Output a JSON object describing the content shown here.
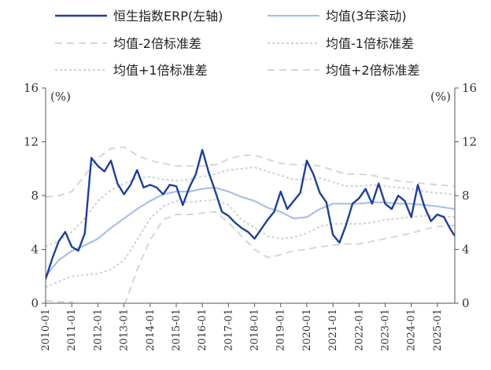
{
  "chart_data": {
    "type": "line",
    "y_left_label": "(%)",
    "y_right_label": "(%)",
    "ylim": [
      0,
      16
    ],
    "y_ticks": [
      "0",
      "4",
      "8",
      "12",
      "16"
    ],
    "x_ticks": [
      "2010-01",
      "2011-01",
      "2012-01",
      "2013-01",
      "2014-01",
      "2015-01",
      "2016-01",
      "2017-01",
      "2018-01",
      "2019-01",
      "2020-01",
      "2021-01",
      "2022-01",
      "2023-01",
      "2024-01",
      "2025-01"
    ],
    "x_range": [
      "2010-01",
      "2025-09"
    ],
    "colors": {
      "erp": "#1f3f99",
      "mean": "#a9c0e6",
      "band2": "#d6d6d6",
      "band1": "#d0d0d0"
    },
    "series": [
      {
        "name": "恒生指数ERP(左轴)",
        "key": "erp",
        "x": [
          "2010-01",
          "2010-04",
          "2010-07",
          "2010-10",
          "2011-01",
          "2011-04",
          "2011-07",
          "2011-10",
          "2012-01",
          "2012-04",
          "2012-07",
          "2012-10",
          "2013-01",
          "2013-04",
          "2013-07",
          "2013-10",
          "2014-01",
          "2014-04",
          "2014-07",
          "2014-10",
          "2015-01",
          "2015-04",
          "2015-07",
          "2015-10",
          "2016-01",
          "2016-04",
          "2016-07",
          "2016-10",
          "2017-01",
          "2017-04",
          "2017-07",
          "2017-10",
          "2018-01",
          "2018-04",
          "2018-07",
          "2018-10",
          "2019-01",
          "2019-04",
          "2019-07",
          "2019-10",
          "2020-01",
          "2020-04",
          "2020-07",
          "2020-10",
          "2021-01",
          "2021-04",
          "2021-07",
          "2021-10",
          "2022-01",
          "2022-04",
          "2022-07",
          "2022-10",
          "2023-01",
          "2023-04",
          "2023-07",
          "2023-10",
          "2024-01",
          "2024-04",
          "2024-07",
          "2024-10",
          "2025-01",
          "2025-04",
          "2025-07",
          "2025-09"
        ],
        "values": [
          1.8,
          3.3,
          4.6,
          5.3,
          4.2,
          3.9,
          5.2,
          10.8,
          10.2,
          9.8,
          10.6,
          8.9,
          8.1,
          8.8,
          9.9,
          8.6,
          8.8,
          8.6,
          8.1,
          8.8,
          8.7,
          7.3,
          8.6,
          9.6,
          11.4,
          9.7,
          8.3,
          6.8,
          6.5,
          6.0,
          5.6,
          5.3,
          4.8,
          5.5,
          6.2,
          6.8,
          8.3,
          7.0,
          7.6,
          8.2,
          10.6,
          9.6,
          8.2,
          7.5,
          5.1,
          4.5,
          5.8,
          7.4,
          7.8,
          8.5,
          7.4,
          8.9,
          7.4,
          7.0,
          8.0,
          7.6,
          6.4,
          8.8,
          7.2,
          6.1,
          6.6,
          6.4,
          5.5,
          5.0
        ]
      },
      {
        "name": "均值(3年滚动)",
        "key": "mean",
        "x": [
          "2010-01",
          "2010-07",
          "2011-01",
          "2011-07",
          "2012-01",
          "2012-07",
          "2013-01",
          "2013-07",
          "2014-01",
          "2014-07",
          "2015-01",
          "2015-07",
          "2016-01",
          "2016-07",
          "2017-01",
          "2017-07",
          "2018-01",
          "2018-07",
          "2019-01",
          "2019-07",
          "2020-01",
          "2020-07",
          "2021-01",
          "2021-07",
          "2022-01",
          "2022-07",
          "2023-01",
          "2023-07",
          "2024-01",
          "2024-07",
          "2025-01",
          "2025-09"
        ],
        "values": [
          2.0,
          3.2,
          3.9,
          4.3,
          4.8,
          5.6,
          6.3,
          7.0,
          7.6,
          8.1,
          8.3,
          8.3,
          8.5,
          8.6,
          8.3,
          7.9,
          7.6,
          7.1,
          6.8,
          6.3,
          6.4,
          7.0,
          7.4,
          7.4,
          7.4,
          7.5,
          7.5,
          7.4,
          7.4,
          7.3,
          7.2,
          7.0
        ]
      },
      {
        "name": "均值-2倍标准差",
        "key": "minus2",
        "x": [
          "2010-01",
          "2010-07",
          "2011-01",
          "2011-07",
          "2012-01",
          "2012-07",
          "2013-01",
          "2013-07",
          "2014-01",
          "2014-07",
          "2015-01",
          "2015-07",
          "2016-01",
          "2016-07",
          "2017-01",
          "2017-07",
          "2018-01",
          "2018-07",
          "2019-01",
          "2019-07",
          "2020-01",
          "2020-07",
          "2021-01",
          "2021-07",
          "2022-01",
          "2022-07",
          "2023-01",
          "2023-07",
          "2024-01",
          "2024-07",
          "2025-01",
          "2025-09"
        ],
        "values": [
          0.2,
          0.1,
          0.1,
          -0.5,
          -1.0,
          -1.5,
          -0.3,
          2.5,
          4.7,
          6.2,
          6.6,
          6.6,
          6.7,
          6.8,
          6.0,
          5.0,
          4.0,
          3.4,
          3.6,
          3.9,
          4.0,
          4.2,
          4.3,
          4.4,
          4.4,
          4.6,
          4.8,
          5.0,
          5.2,
          5.5,
          5.7,
          5.8
        ]
      },
      {
        "name": "均值-1倍标准差",
        "key": "minus1",
        "x": [
          "2010-01",
          "2010-07",
          "2011-01",
          "2011-07",
          "2012-01",
          "2012-07",
          "2013-01",
          "2013-07",
          "2014-01",
          "2014-07",
          "2015-01",
          "2015-07",
          "2016-01",
          "2016-07",
          "2017-01",
          "2017-07",
          "2018-01",
          "2018-07",
          "2019-01",
          "2019-07",
          "2020-01",
          "2020-07",
          "2021-01",
          "2021-07",
          "2022-01",
          "2022-07",
          "2023-01",
          "2023-07",
          "2024-01",
          "2024-07",
          "2025-01",
          "2025-09"
        ],
        "values": [
          1.2,
          1.6,
          2.0,
          2.1,
          2.2,
          2.5,
          3.2,
          4.7,
          6.3,
          7.2,
          7.6,
          7.5,
          7.6,
          7.7,
          7.3,
          6.2,
          5.6,
          5.0,
          4.8,
          4.9,
          5.2,
          5.7,
          5.9,
          5.9,
          5.9,
          6.0,
          6.2,
          6.3,
          6.4,
          6.5,
          6.5,
          6.4
        ]
      },
      {
        "name": "均值+1倍标准差",
        "key": "plus1",
        "x": [
          "2010-01",
          "2010-07",
          "2011-01",
          "2011-07",
          "2012-01",
          "2012-07",
          "2013-01",
          "2013-07",
          "2014-01",
          "2014-07",
          "2015-01",
          "2015-07",
          "2016-01",
          "2016-07",
          "2017-01",
          "2017-07",
          "2018-01",
          "2018-07",
          "2019-01",
          "2019-07",
          "2020-01",
          "2020-07",
          "2021-01",
          "2021-07",
          "2022-01",
          "2022-07",
          "2023-01",
          "2023-07",
          "2024-01",
          "2024-07",
          "2025-01",
          "2025-09"
        ],
        "values": [
          4.2,
          4.6,
          5.3,
          6.3,
          7.6,
          8.4,
          8.9,
          9.3,
          9.4,
          9.2,
          9.1,
          9.2,
          9.4,
          9.6,
          9.9,
          10.0,
          10.1,
          9.8,
          9.5,
          9.2,
          9.2,
          9.3,
          9.0,
          8.7,
          8.7,
          8.8,
          8.7,
          8.6,
          8.5,
          8.3,
          8.2,
          8.1
        ]
      },
      {
        "name": "均值+2倍标准差",
        "key": "plus2",
        "x": [
          "2010-01",
          "2010-07",
          "2011-01",
          "2011-07",
          "2012-01",
          "2012-07",
          "2013-01",
          "2013-07",
          "2014-01",
          "2014-07",
          "2015-01",
          "2015-07",
          "2016-01",
          "2016-07",
          "2017-01",
          "2017-07",
          "2018-01",
          "2018-07",
          "2019-01",
          "2019-07",
          "2020-01",
          "2020-07",
          "2021-01",
          "2021-07",
          "2022-01",
          "2022-07",
          "2023-01",
          "2023-07",
          "2024-01",
          "2024-07",
          "2025-01",
          "2025-09"
        ],
        "values": [
          7.9,
          8.0,
          8.3,
          9.5,
          10.8,
          11.5,
          11.6,
          11.0,
          10.6,
          10.4,
          10.2,
          10.2,
          10.2,
          10.3,
          10.7,
          11.0,
          11.0,
          10.7,
          10.4,
          10.3,
          10.3,
          10.2,
          9.9,
          9.6,
          9.6,
          9.5,
          9.3,
          9.1,
          9.0,
          8.9,
          8.8,
          8.7
        ]
      }
    ]
  }
}
